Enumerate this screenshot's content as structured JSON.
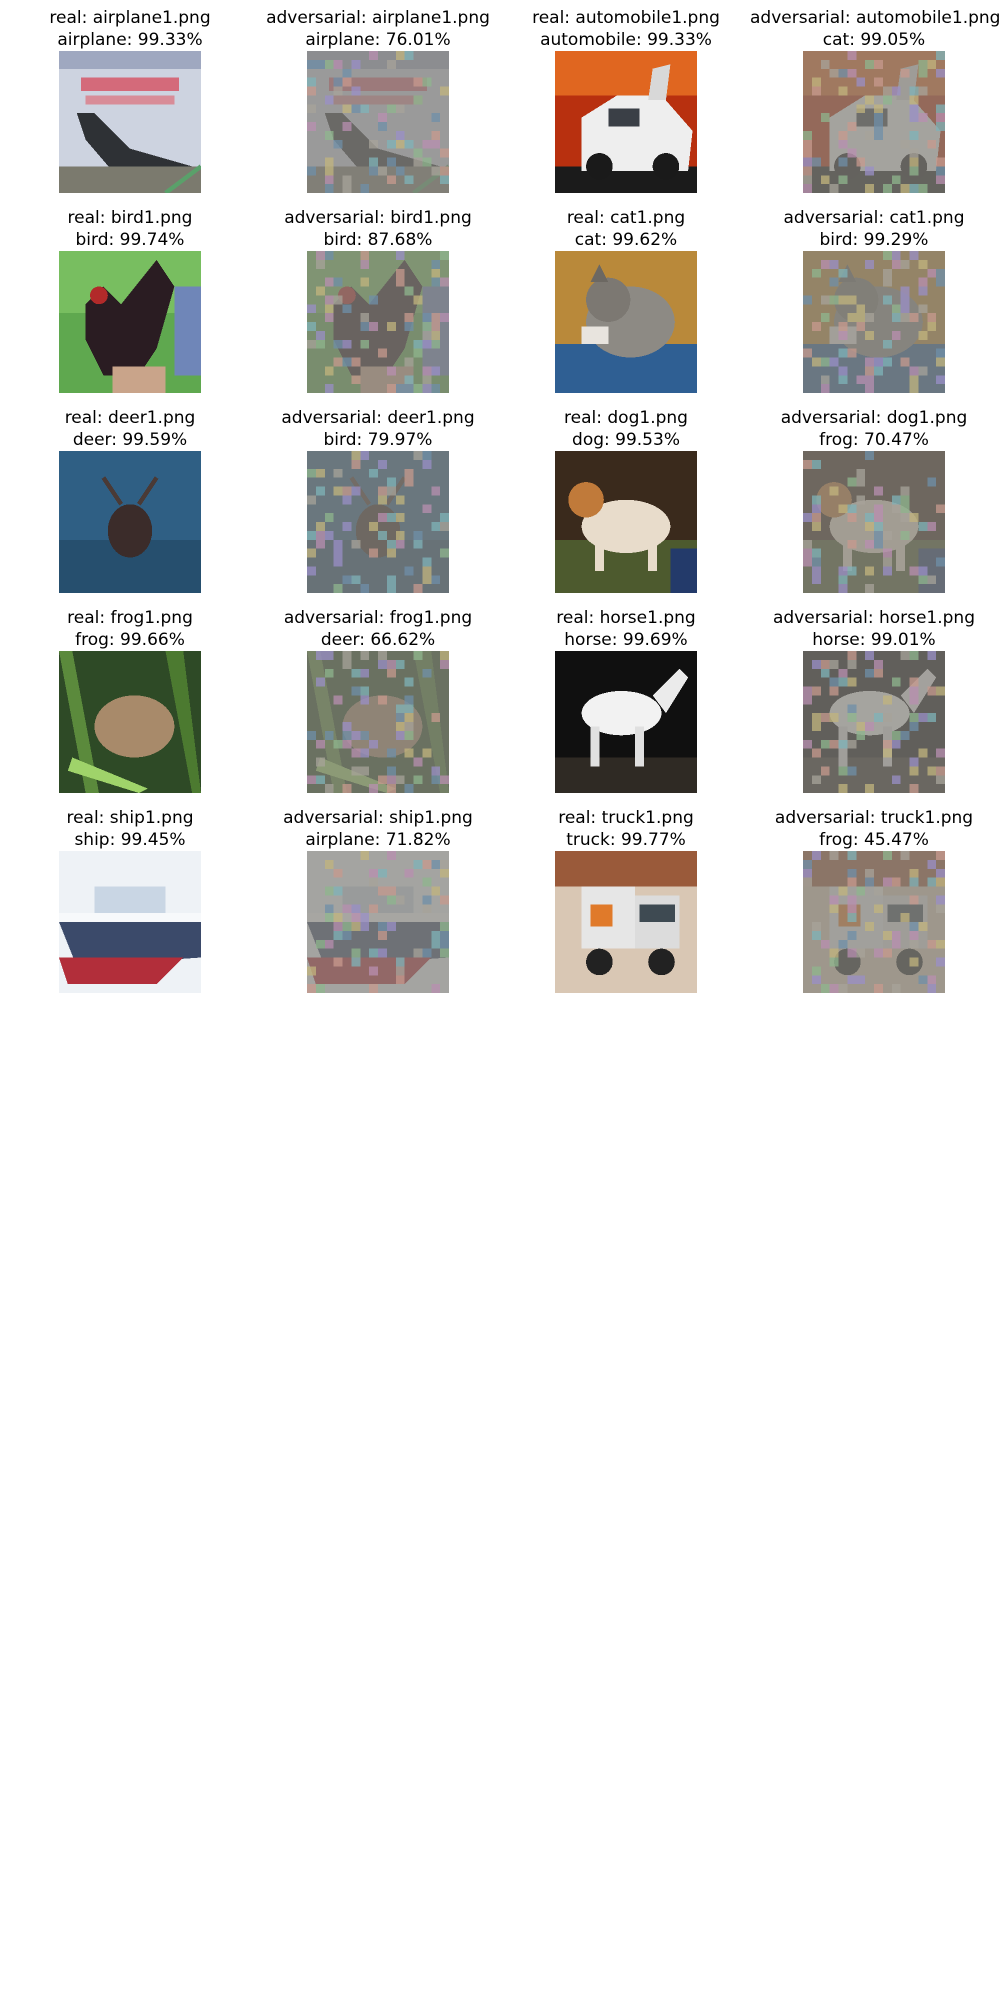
{
  "panels": [
    {
      "kind": "real",
      "filename": "real: airplane1.png",
      "prediction": "airplane: 99.33%",
      "subject": "airplane"
    },
    {
      "kind": "adversarial",
      "filename": "adversarial: airplane1.png",
      "prediction": "airplane: 76.01%",
      "subject": "airplane"
    },
    {
      "kind": "real",
      "filename": "real: automobile1.png",
      "prediction": "automobile: 99.33%",
      "subject": "automobile"
    },
    {
      "kind": "adversarial",
      "filename": "adversarial: automobile1.png",
      "prediction": "cat: 99.05%",
      "subject": "automobile"
    },
    {
      "kind": "real",
      "filename": "real: bird1.png",
      "prediction": "bird: 99.74%",
      "subject": "bird"
    },
    {
      "kind": "adversarial",
      "filename": "adversarial: bird1.png",
      "prediction": "bird: 87.68%",
      "subject": "bird"
    },
    {
      "kind": "real",
      "filename": "real: cat1.png",
      "prediction": "cat: 99.62%",
      "subject": "cat"
    },
    {
      "kind": "adversarial",
      "filename": "adversarial: cat1.png",
      "prediction": "bird: 99.29%",
      "subject": "cat"
    },
    {
      "kind": "real",
      "filename": "real: deer1.png",
      "prediction": "deer: 99.59%",
      "subject": "deer"
    },
    {
      "kind": "adversarial",
      "filename": "adversarial: deer1.png",
      "prediction": "bird: 79.97%",
      "subject": "deer"
    },
    {
      "kind": "real",
      "filename": "real: dog1.png",
      "prediction": "dog: 99.53%",
      "subject": "dog"
    },
    {
      "kind": "adversarial",
      "filename": "adversarial: dog1.png",
      "prediction": "frog: 70.47%",
      "subject": "dog"
    },
    {
      "kind": "real",
      "filename": "real: frog1.png",
      "prediction": "frog: 99.66%",
      "subject": "frog"
    },
    {
      "kind": "adversarial",
      "filename": "adversarial: frog1.png",
      "prediction": "deer: 66.62%",
      "subject": "frog"
    },
    {
      "kind": "real",
      "filename": "real: horse1.png",
      "prediction": "horse: 99.69%",
      "subject": "horse"
    },
    {
      "kind": "adversarial",
      "filename": "adversarial: horse1.png",
      "prediction": "horse: 99.01%",
      "subject": "horse"
    },
    {
      "kind": "real",
      "filename": "real: ship1.png",
      "prediction": "ship: 99.45%",
      "subject": "ship"
    },
    {
      "kind": "adversarial",
      "filename": "adversarial: ship1.png",
      "prediction": "airplane: 71.82%",
      "subject": "ship"
    },
    {
      "kind": "real",
      "filename": "real: truck1.png",
      "prediction": "truck: 99.77%",
      "subject": "truck"
    },
    {
      "kind": "adversarial",
      "filename": "adversarial: truck1.png",
      "prediction": "frog: 45.47%",
      "subject": "truck"
    }
  ],
  "colors": {
    "adversarial_background": "#84827c",
    "noise_palette": [
      "#c79a8e",
      "#8fb58d",
      "#9a8fc7",
      "#c2b47e",
      "#7fb3b8",
      "#b88fb0",
      "#a7a39a",
      "#6f8fa8"
    ]
  }
}
